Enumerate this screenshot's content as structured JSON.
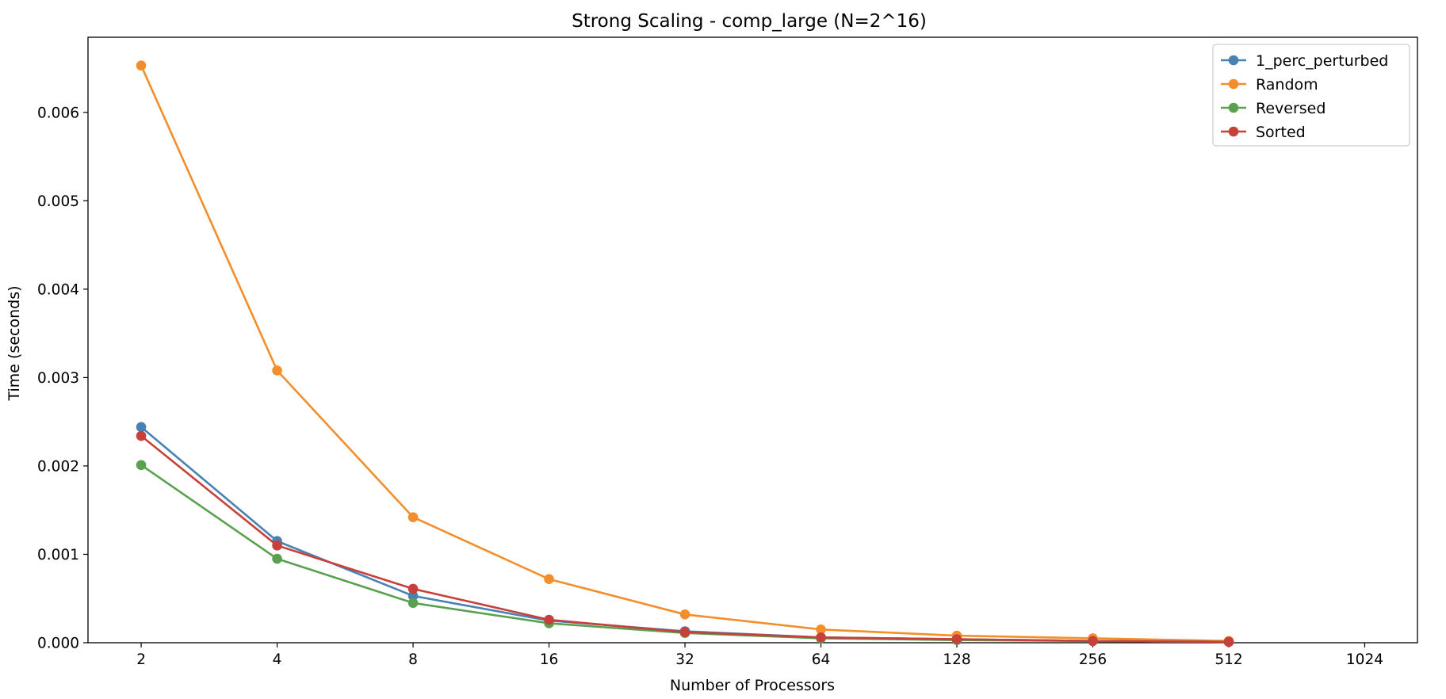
{
  "chart_data": {
    "type": "line",
    "title": "Strong Scaling - comp_large (N=2^16)",
    "xlabel": "Number of Processors",
    "ylabel": "Time (seconds)",
    "x_scale": "log2",
    "x": [
      2,
      4,
      8,
      16,
      32,
      64,
      128,
      256,
      512
    ],
    "x_ticks": [
      2,
      4,
      8,
      16,
      32,
      64,
      128,
      256,
      512,
      1024
    ],
    "x_tick_labels": [
      "2",
      "4",
      "8",
      "16",
      "32",
      "64",
      "128",
      "256",
      "512",
      "1024"
    ],
    "ylim": [
      0,
      0.00685
    ],
    "y_ticks": [
      0,
      0.001,
      0.002,
      0.003,
      0.004,
      0.005,
      0.006
    ],
    "y_tick_labels": [
      "0.000",
      "0.001",
      "0.002",
      "0.003",
      "0.004",
      "0.005",
      "0.006"
    ],
    "grid": false,
    "legend_position": "top-right",
    "series": [
      {
        "name": "1_perc_perturbed",
        "color": "#4682b4",
        "values": [
          0.00244,
          0.00115,
          0.00053,
          0.00025,
          0.00013,
          6e-05,
          4e-05,
          2e-05,
          1e-05
        ]
      },
      {
        "name": "Random",
        "color": "#f28e2b",
        "values": [
          0.00653,
          0.00308,
          0.00142,
          0.00072,
          0.00032,
          0.00015,
          8e-05,
          5e-05,
          2e-05
        ]
      },
      {
        "name": "Reversed",
        "color": "#59a14f",
        "values": [
          0.00201,
          0.00095,
          0.00045,
          0.00022,
          0.00011,
          5e-05,
          3e-05,
          2e-05,
          1e-05
        ]
      },
      {
        "name": "Sorted",
        "color": "#c8403a",
        "values": [
          0.00234,
          0.0011,
          0.00061,
          0.00026,
          0.00012,
          6e-05,
          4e-05,
          2e-05,
          1e-05
        ]
      }
    ]
  }
}
